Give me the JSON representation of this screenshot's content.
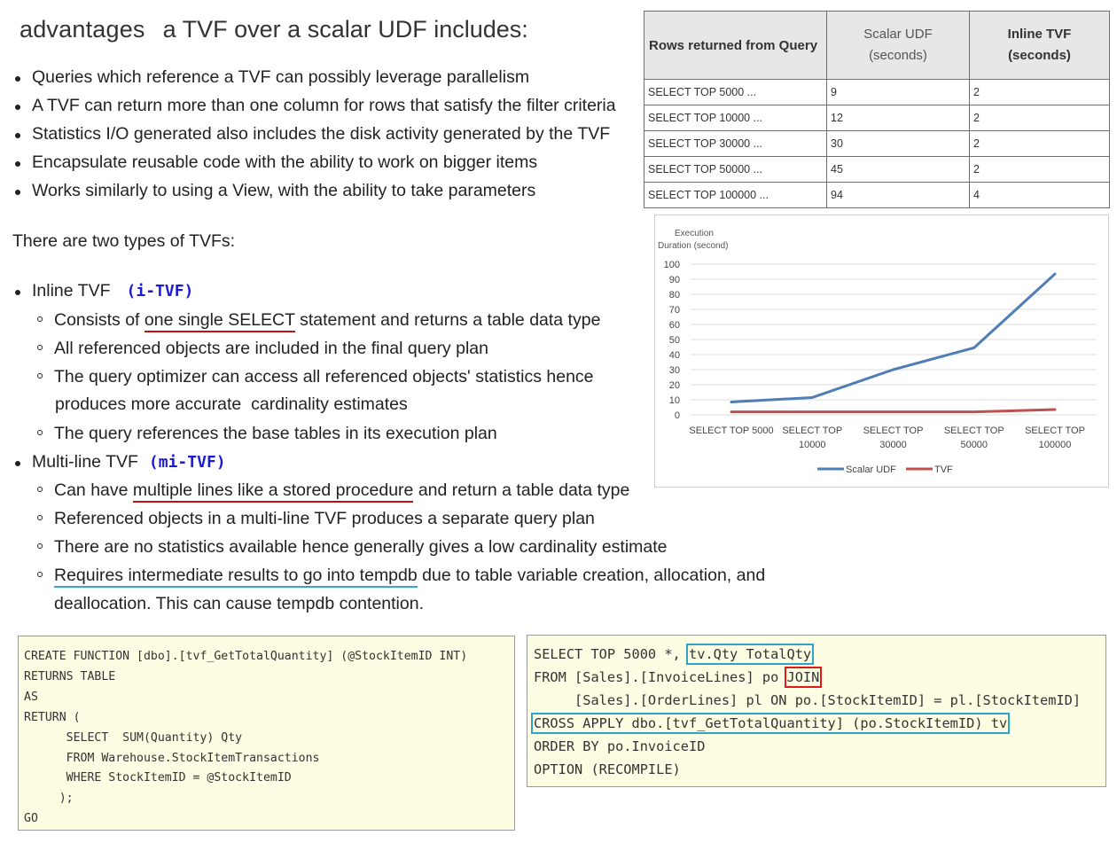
{
  "heading": {
    "word1": "advantages",
    "rest": "a TVF over a scalar UDF includes:"
  },
  "advantages": [
    "Queries which reference a TVF can possibly leverage parallelism",
    "A TVF can return more than one column for rows that satisfy the filter criteria",
    "Statistics I/O generated also includes the disk activity generated by the TVF",
    "Encapsulate reusable code with the ability to work on bigger items",
    "Works similarly to using a View, with the ability to take parameters"
  ],
  "types_intro": "There are two types of TVFs:",
  "inline": {
    "label": "Inline TVF",
    "tag": "(i-TVF)",
    "items": {
      "i1_pre": "Consists of ",
      "i1_ul": "one single SELECT",
      "i1_post": " statement and returns a table data type",
      "i2": "All referenced objects are included in the final query plan",
      "i3_l1": "The query optimizer can access all referenced objects' statistics hence",
      "i3_l2": "produces more accurate  cardinality estimates",
      "i4": "The query references the base tables in its execution plan"
    }
  },
  "multiline": {
    "label": "Multi-line TVF",
    "tag": "(mi-TVF)",
    "items": {
      "m1_pre": "Can have ",
      "m1_ul": "multiple lines like a stored procedure",
      "m1_post": " and return a table data type",
      "m2": "Referenced objects in a multi-line TVF produces a separate query plan",
      "m3": "There are no statistics available hence generally gives a low cardinality estimate",
      "m4_ul": "Requires intermediate results to go into tempdb",
      "m4_post": " due to table variable creation, allocation, and",
      "m4_l2": "deallocation. This can cause tempdb contention."
    }
  },
  "table": {
    "headers": [
      "Rows returned from Query",
      "Scalar UDF",
      "(seconds)",
      "Inline TVF",
      "(seconds)"
    ],
    "rows": [
      [
        "SELECT TOP 5000 ...",
        "9",
        "2"
      ],
      [
        "SELECT TOP 10000 ...",
        "12",
        "2"
      ],
      [
        "SELECT TOP 30000 ...",
        "30",
        "2"
      ],
      [
        "SELECT TOP 50000 ...",
        "45",
        "2"
      ],
      [
        "SELECT TOP 100000 ...",
        "94",
        "4"
      ]
    ]
  },
  "chart_data": {
    "type": "line",
    "ylabel_l1": "Execution",
    "ylabel_l2": "Duration (second)",
    "categories": [
      [
        "SELECT TOP 5000"
      ],
      [
        "SELECT TOP",
        "10000"
      ],
      [
        "SELECT TOP",
        "30000"
      ],
      [
        "SELECT TOP",
        "50000"
      ],
      [
        "SELECT TOP",
        "100000"
      ]
    ],
    "yticks": [
      "0",
      "10",
      "20",
      "30",
      "40",
      "50",
      "60",
      "70",
      "80",
      "90",
      "100"
    ],
    "ylim": [
      0,
      100
    ],
    "grid": true,
    "legend_position": "bottom",
    "series": [
      {
        "name": "Scalar UDF",
        "values": [
          8.5,
          11.5,
          30,
          44.5,
          93.5
        ],
        "color": "#4f7db5"
      },
      {
        "name": "TVF",
        "values": [
          2,
          2,
          2,
          2,
          3.5
        ],
        "color": "#c0504d"
      }
    ]
  },
  "code_function": [
    "CREATE FUNCTION [dbo].[tvf_GetTotalQuantity] (@StockItemID INT)",
    "RETURNS TABLE",
    "AS",
    "RETURN (",
    "      SELECT  SUM(Quantity) Qty",
    "      FROM Warehouse.StockItemTransactions",
    "      WHERE StockItemID = @StockItemID",
    "     );",
    "GO"
  ],
  "code_query": {
    "l1_pre": "SELECT TOP 5000 *, ",
    "l1_box": "tv.Qty TotalQty",
    "l2_pre": "FROM [Sales].[InvoiceLines] po ",
    "l2_box": "JOIN",
    "l3": "     [Sales].[OrderLines] pl ON po.[StockItemID] = pl.[StockItemID]",
    "l4_box": "CROSS APPLY dbo.[tvf_GetTotalQuantity] (po.StockItemID) tv",
    "l5": "ORDER BY po.InvoiceID",
    "l6": "OPTION (RECOMPILE)"
  }
}
